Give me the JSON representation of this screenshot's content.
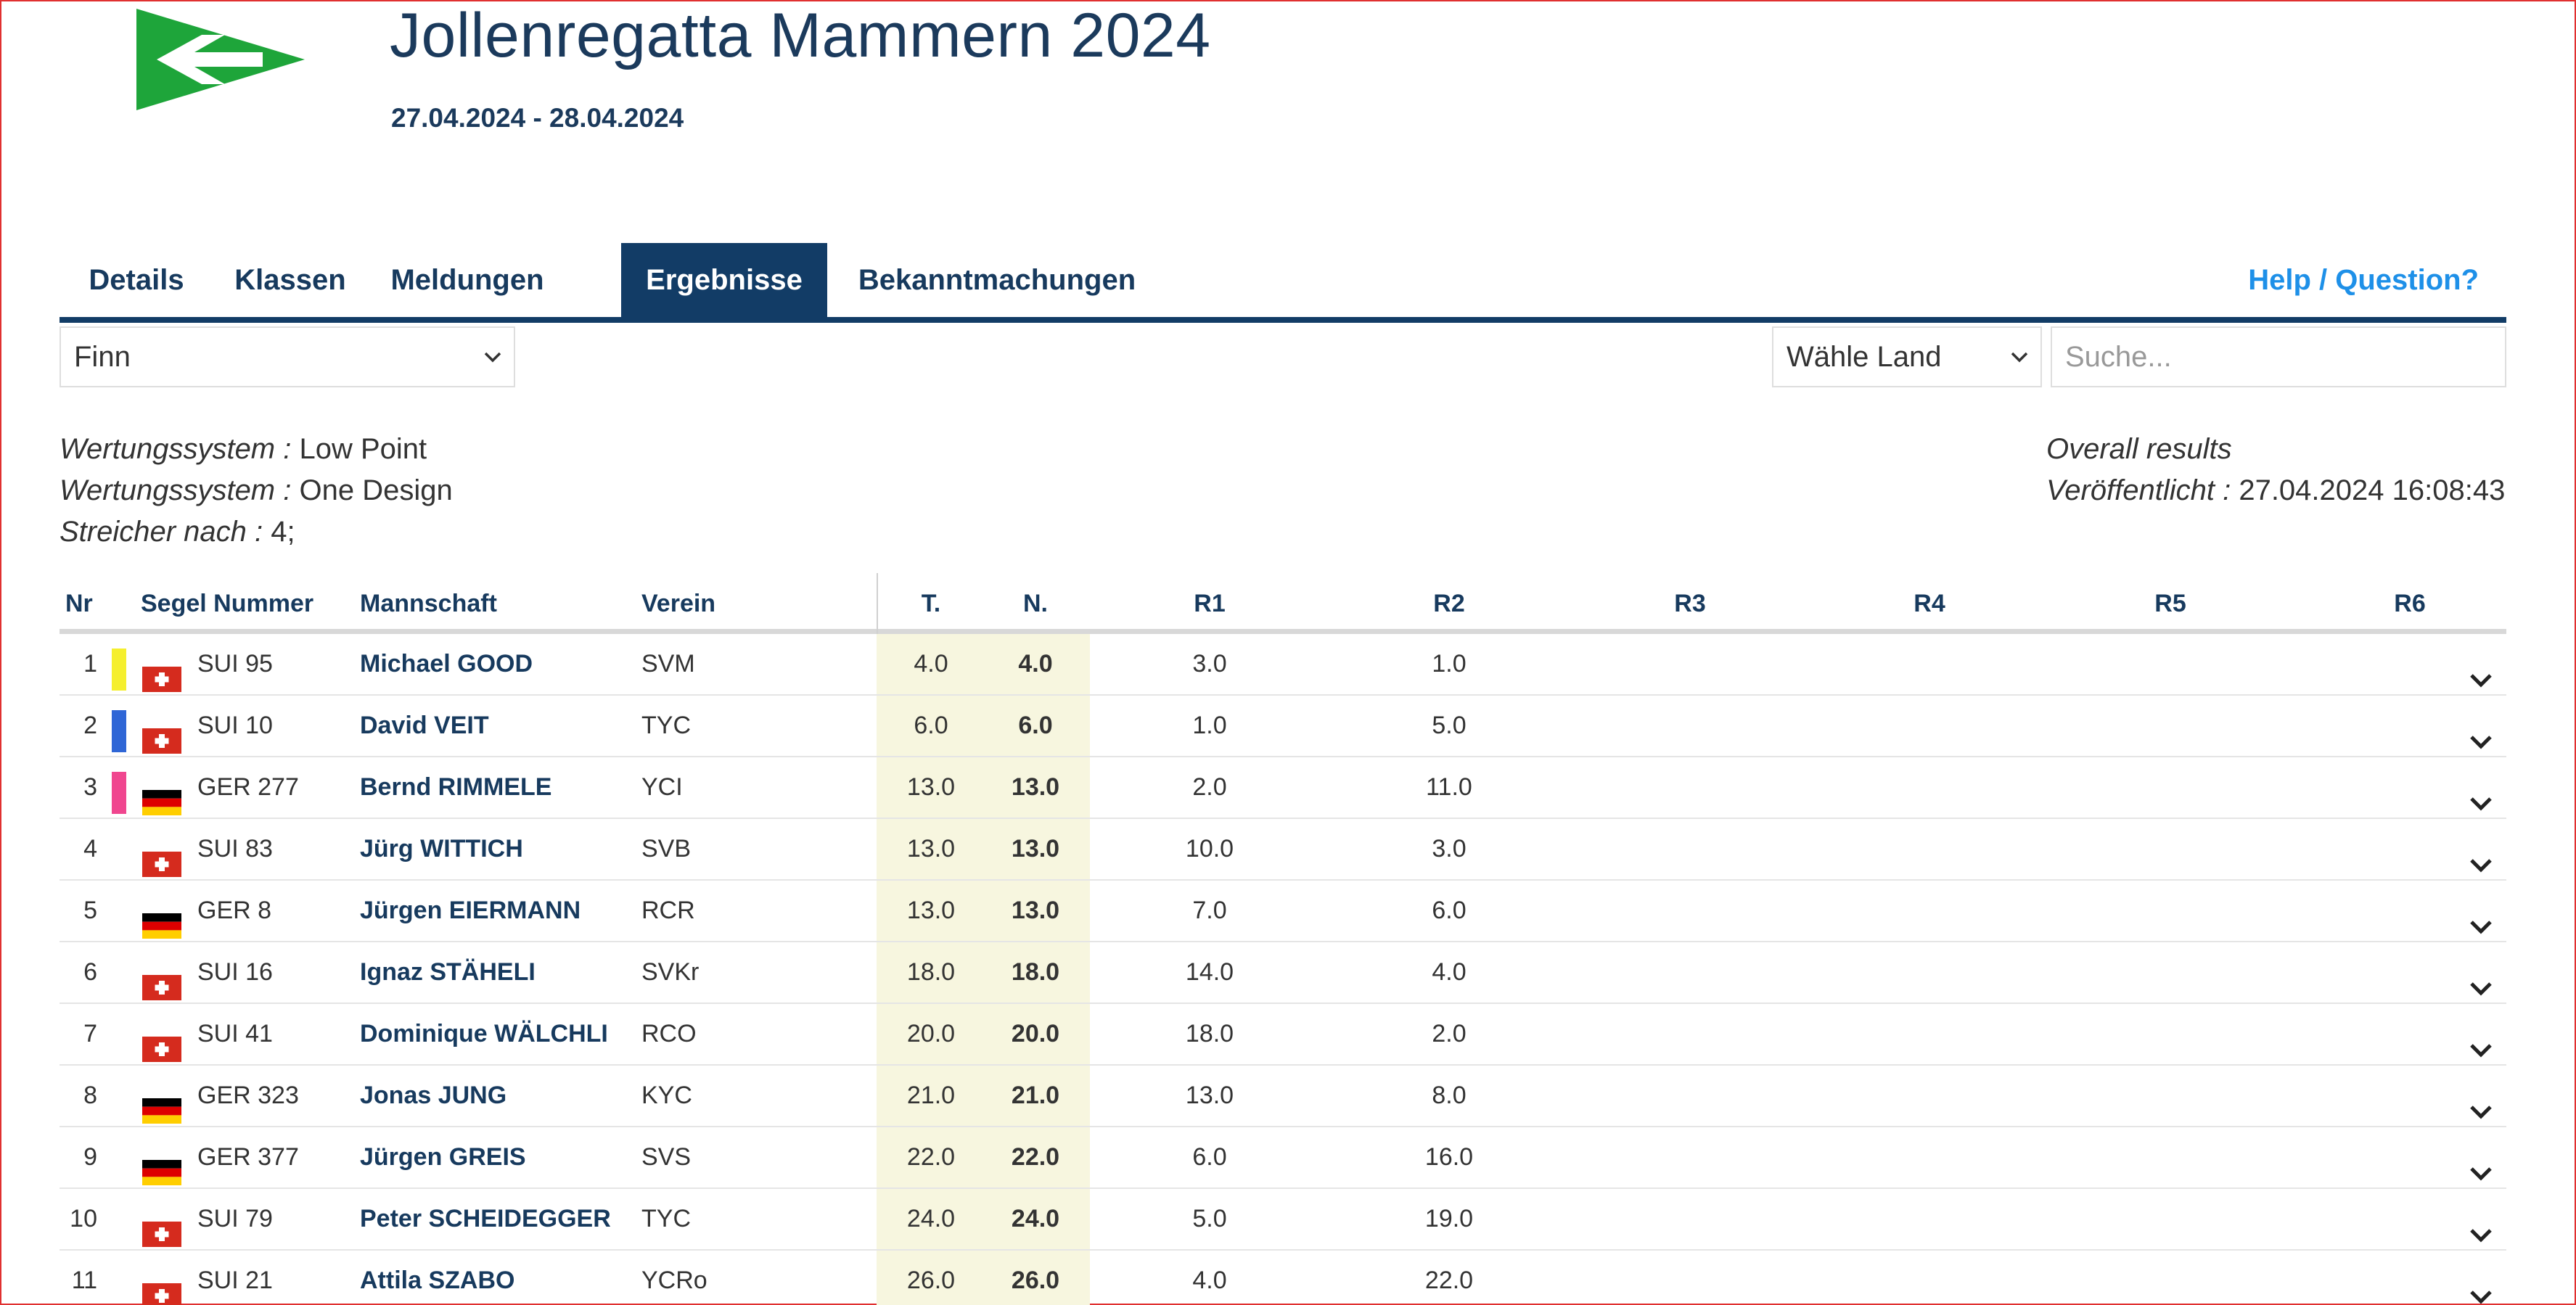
{
  "header": {
    "title": "Jollenregatta Mammern 2024",
    "dates": "27.04.2024 - 28.04.2024"
  },
  "tabs": [
    {
      "label": "Details",
      "active": false
    },
    {
      "label": "Klassen",
      "active": false
    },
    {
      "label": "Meldungen",
      "active": false
    },
    {
      "label": "Ergebnisse",
      "active": true
    },
    {
      "label": "Bekanntmachungen",
      "active": false
    }
  ],
  "help_label": "Help / Question?",
  "filters": {
    "class_select": "Finn",
    "country_select": "Wähle Land",
    "search_placeholder": "Suche..."
  },
  "meta": {
    "scoring_label": "Wertungssystem :",
    "scoring_value_1": "Low Point",
    "scoring_value_2": "One Design",
    "discard_label": "Streicher nach :",
    "discard_value": "4;",
    "overall": "Overall results",
    "published_label": "Veröffentlicht :",
    "published_value": "27.04.2024 16:08:43"
  },
  "table": {
    "headers": {
      "nr": "Nr",
      "sail": "Segel Nummer",
      "team": "Mannschaft",
      "club": "Verein",
      "t": "T.",
      "n": "N.",
      "r1": "R1",
      "r2": "R2",
      "r3": "R3",
      "r4": "R4",
      "r5": "R5",
      "r6": "R6"
    },
    "rows": [
      {
        "nr": "1",
        "mark": "#f5ef2e",
        "country": "SUI",
        "sail": "SUI 95",
        "team": "Michael GOOD",
        "club": "SVM",
        "t": "4.0",
        "n": "4.0",
        "r1": "3.0",
        "r2": "1.0"
      },
      {
        "nr": "2",
        "mark": "#2f66d6",
        "country": "SUI",
        "sail": "SUI 10",
        "team": "David VEIT",
        "club": "TYC",
        "t": "6.0",
        "n": "6.0",
        "r1": "1.0",
        "r2": "5.0"
      },
      {
        "nr": "3",
        "mark": "#f0468f",
        "country": "GER",
        "sail": "GER 277",
        "team": "Bernd RIMMELE",
        "club": "YCI",
        "t": "13.0",
        "n": "13.0",
        "r1": "2.0",
        "r2": "11.0"
      },
      {
        "nr": "4",
        "mark": "",
        "country": "SUI",
        "sail": "SUI 83",
        "team": "Jürg WITTICH",
        "club": "SVB",
        "t": "13.0",
        "n": "13.0",
        "r1": "10.0",
        "r2": "3.0"
      },
      {
        "nr": "5",
        "mark": "",
        "country": "GER",
        "sail": "GER 8",
        "team": "Jürgen EIERMANN",
        "club": "RCR",
        "t": "13.0",
        "n": "13.0",
        "r1": "7.0",
        "r2": "6.0"
      },
      {
        "nr": "6",
        "mark": "",
        "country": "SUI",
        "sail": "SUI 16",
        "team": "Ignaz STÄHELI",
        "club": "SVKr",
        "t": "18.0",
        "n": "18.0",
        "r1": "14.0",
        "r2": "4.0"
      },
      {
        "nr": "7",
        "mark": "",
        "country": "SUI",
        "sail": "SUI 41",
        "team": "Dominique WÄLCHLI",
        "club": "RCO",
        "t": "20.0",
        "n": "20.0",
        "r1": "18.0",
        "r2": "2.0"
      },
      {
        "nr": "8",
        "mark": "",
        "country": "GER",
        "sail": "GER 323",
        "team": "Jonas JUNG",
        "club": "KYC",
        "t": "21.0",
        "n": "21.0",
        "r1": "13.0",
        "r2": "8.0"
      },
      {
        "nr": "9",
        "mark": "",
        "country": "GER",
        "sail": "GER 377",
        "team": "Jürgen GREIS",
        "club": "SVS",
        "t": "22.0",
        "n": "22.0",
        "r1": "6.0",
        "r2": "16.0"
      },
      {
        "nr": "10",
        "mark": "",
        "country": "SUI",
        "sail": "SUI 79",
        "team": "Peter SCHEIDEGGER",
        "club": "TYC",
        "t": "24.0",
        "n": "24.0",
        "r1": "5.0",
        "r2": "19.0"
      },
      {
        "nr": "11",
        "mark": "",
        "country": "SUI",
        "sail": "SUI 21",
        "team": "Attila SZABO",
        "club": "YCRo",
        "t": "26.0",
        "n": "26.0",
        "r1": "4.0",
        "r2": "22.0"
      }
    ]
  },
  "colors": {
    "primary": "#123c66",
    "accent": "#1e90e8",
    "logo_green": "#1ea53a",
    "total_highlight": "#f7f6df"
  },
  "icons": {
    "logo": "club-burgee-logo",
    "dropdown": "chevron-down-icon",
    "expand": "chevron-down-icon",
    "flag_sui": "swiss-flag-icon",
    "flag_ger": "german-flag-icon"
  }
}
